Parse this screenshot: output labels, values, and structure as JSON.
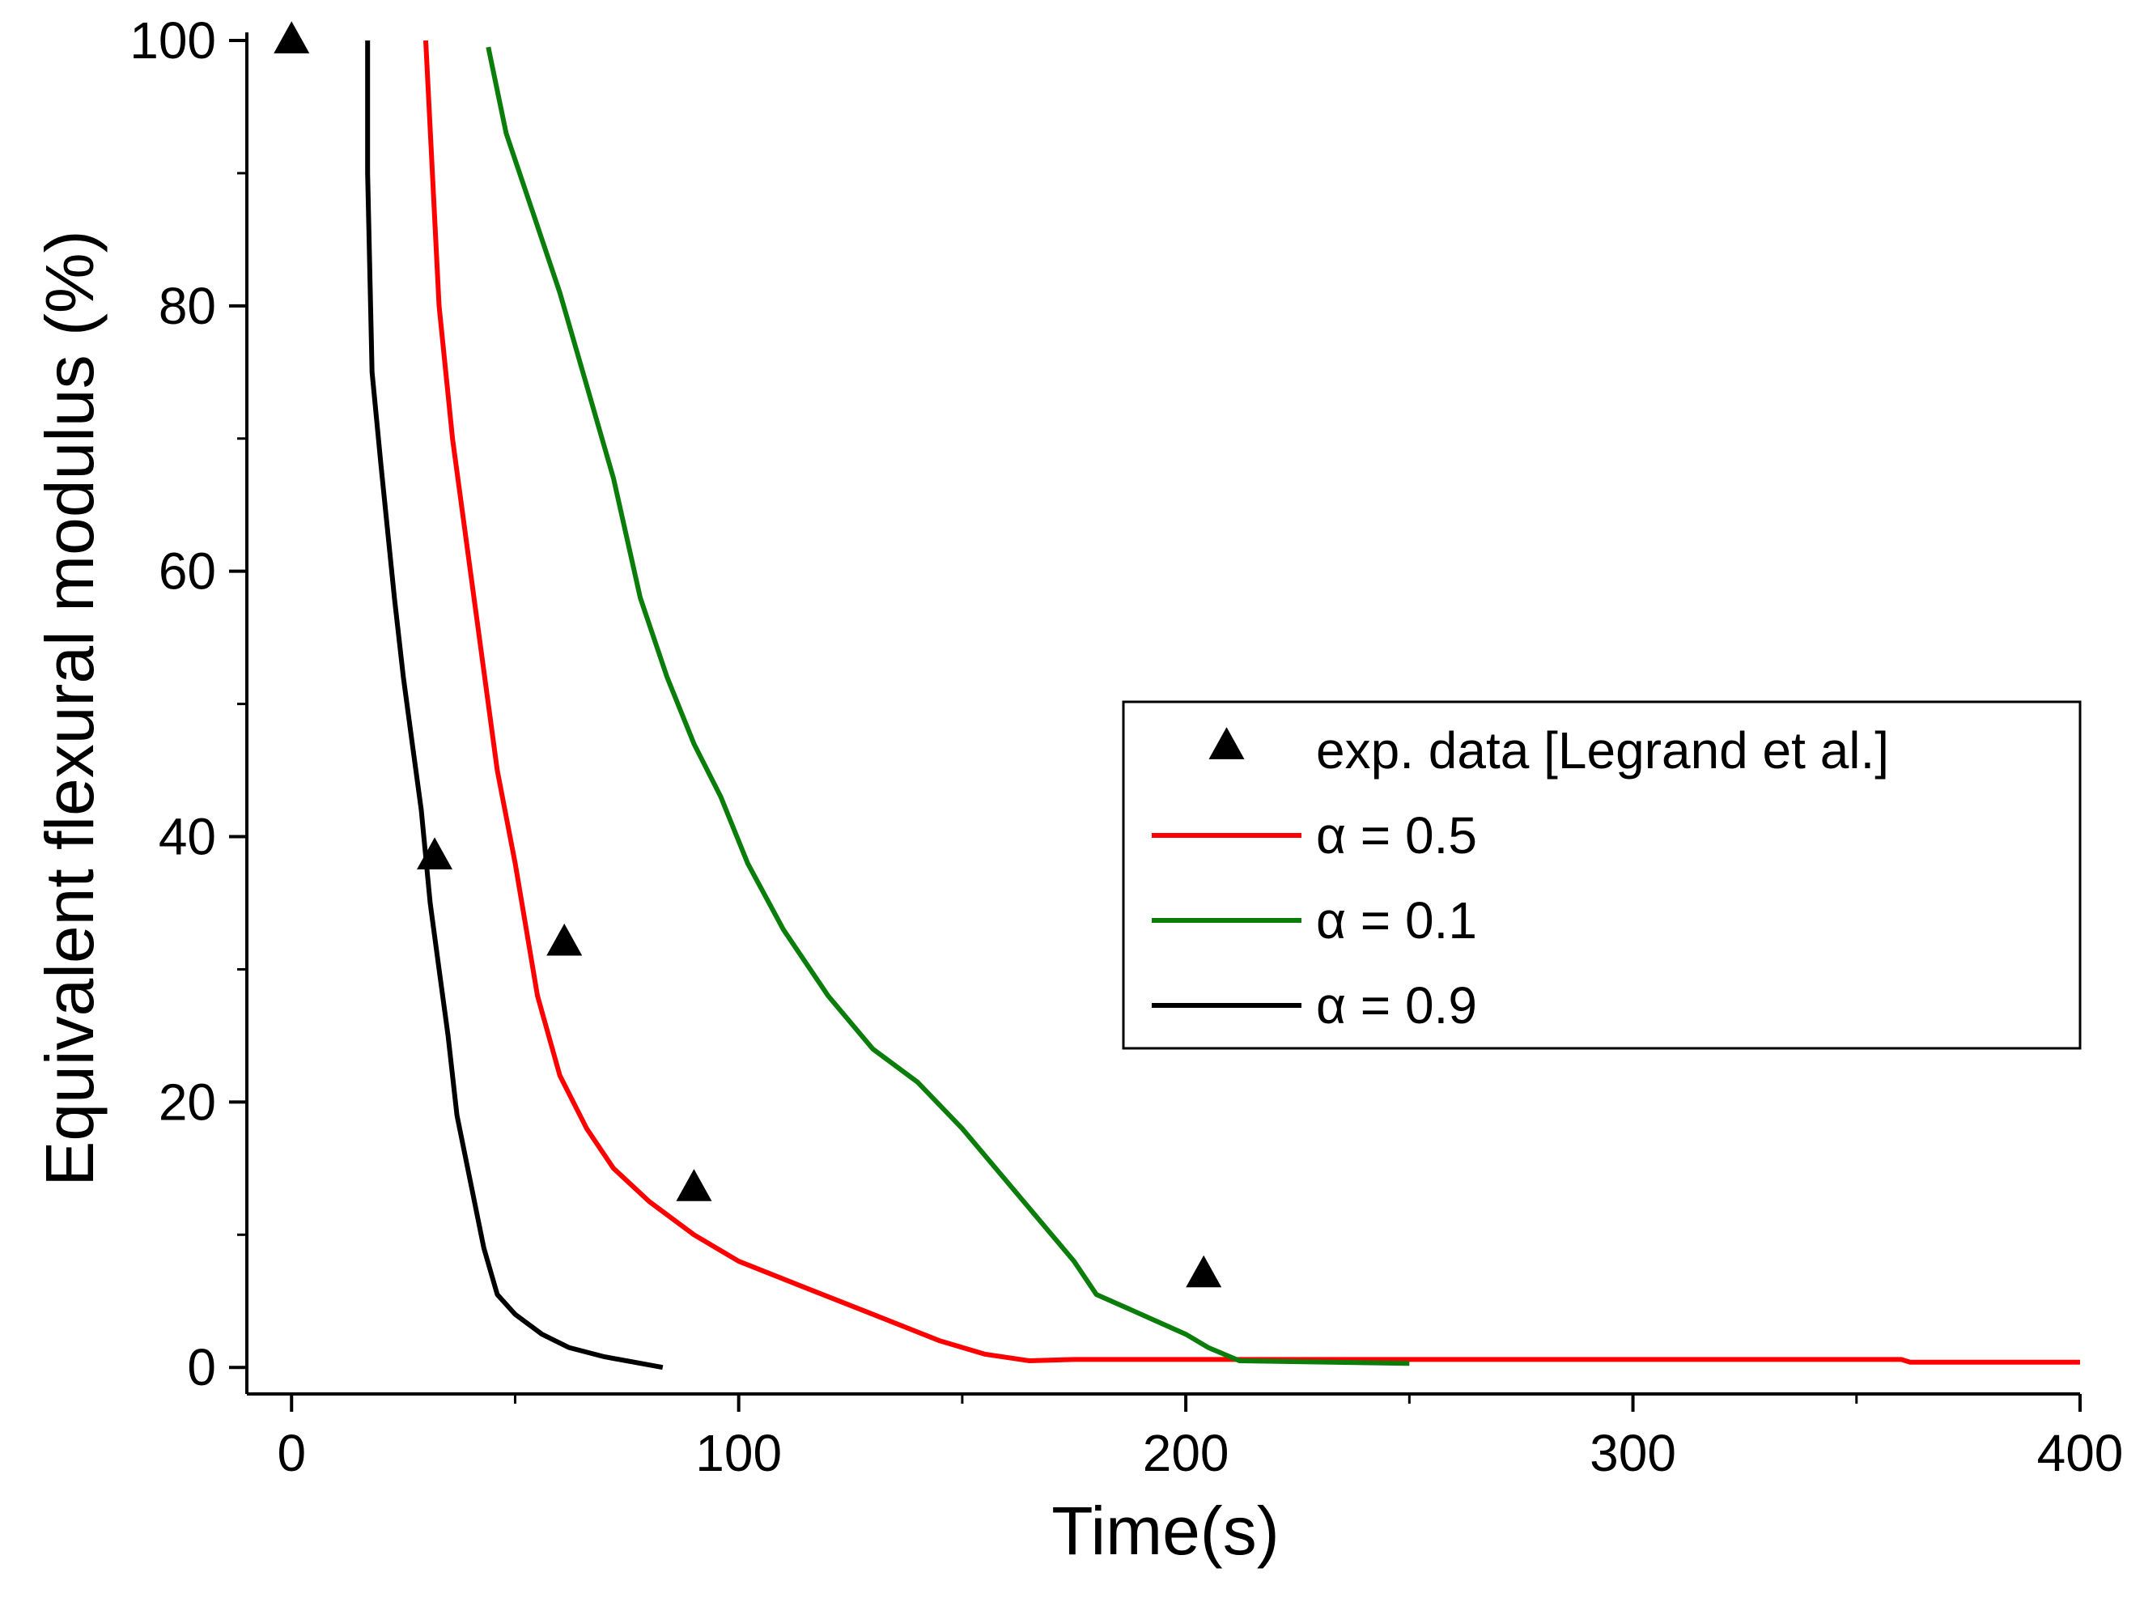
{
  "chart_data": {
    "type": "line",
    "xlabel": "Time(s)",
    "ylabel": "Equivalent flexural modulus (%)",
    "xlim": [
      -10,
      400
    ],
    "ylim": [
      -2,
      100
    ],
    "x_ticks": [
      0,
      100,
      200,
      300,
      400
    ],
    "y_ticks": [
      0,
      20,
      40,
      60,
      80,
      100
    ],
    "x_minor_step": 50,
    "y_minor_step": 10,
    "grid": false,
    "legend_position": "right-middle",
    "scatter": {
      "name": "exp. data [Legrand et al.]",
      "marker": "triangle",
      "color": "#000000",
      "points": [
        {
          "x": 0,
          "y": 100
        },
        {
          "x": 32,
          "y": 38.5
        },
        {
          "x": 61,
          "y": 32
        },
        {
          "x": 90,
          "y": 13.5
        },
        {
          "x": 204,
          "y": 7
        }
      ]
    },
    "series": [
      {
        "name": "α = 0.5",
        "color": "#ff0000",
        "points": [
          [
            30,
            100
          ],
          [
            33,
            80
          ],
          [
            36,
            70
          ],
          [
            40,
            60
          ],
          [
            46,
            45
          ],
          [
            50,
            38
          ],
          [
            55,
            28
          ],
          [
            60,
            22
          ],
          [
            66,
            18
          ],
          [
            72,
            15
          ],
          [
            80,
            12.5
          ],
          [
            90,
            10
          ],
          [
            100,
            8
          ],
          [
            115,
            6
          ],
          [
            130,
            4
          ],
          [
            145,
            2
          ],
          [
            155,
            1
          ],
          [
            165,
            0.5
          ],
          [
            175,
            0.6
          ],
          [
            250,
            0.6
          ],
          [
            360,
            0.6
          ],
          [
            362,
            0.4
          ],
          [
            400,
            0.4
          ]
        ]
      },
      {
        "name": "α = 0.1",
        "color": "#0a7d0a",
        "points": [
          [
            44,
            99.5
          ],
          [
            48,
            93
          ],
          [
            54,
            87
          ],
          [
            60,
            81
          ],
          [
            66,
            74
          ],
          [
            72,
            67
          ],
          [
            78,
            58
          ],
          [
            84,
            52
          ],
          [
            90,
            47
          ],
          [
            96,
            43
          ],
          [
            102,
            38
          ],
          [
            110,
            33
          ],
          [
            120,
            28
          ],
          [
            130,
            24
          ],
          [
            140,
            21.5
          ],
          [
            150,
            18
          ],
          [
            160,
            14
          ],
          [
            170,
            10
          ],
          [
            175,
            8
          ],
          [
            180,
            5.5
          ],
          [
            190,
            4
          ],
          [
            200,
            2.5
          ],
          [
            205,
            1.5
          ],
          [
            212,
            0.5
          ],
          [
            250,
            0.3
          ]
        ]
      },
      {
        "name": "α = 0.9",
        "color": "#000000",
        "points": [
          [
            17,
            100
          ],
          [
            17,
            90
          ],
          [
            18,
            75
          ],
          [
            20,
            68
          ],
          [
            23,
            58
          ],
          [
            25,
            52
          ],
          [
            27,
            47
          ],
          [
            29,
            42
          ],
          [
            31,
            35
          ],
          [
            33,
            30
          ],
          [
            35,
            25
          ],
          [
            37,
            19
          ],
          [
            40,
            14
          ],
          [
            43,
            9
          ],
          [
            46,
            5.5
          ],
          [
            50,
            4
          ],
          [
            56,
            2.5
          ],
          [
            62,
            1.5
          ],
          [
            70,
            0.8
          ],
          [
            83,
            0
          ]
        ]
      }
    ]
  }
}
